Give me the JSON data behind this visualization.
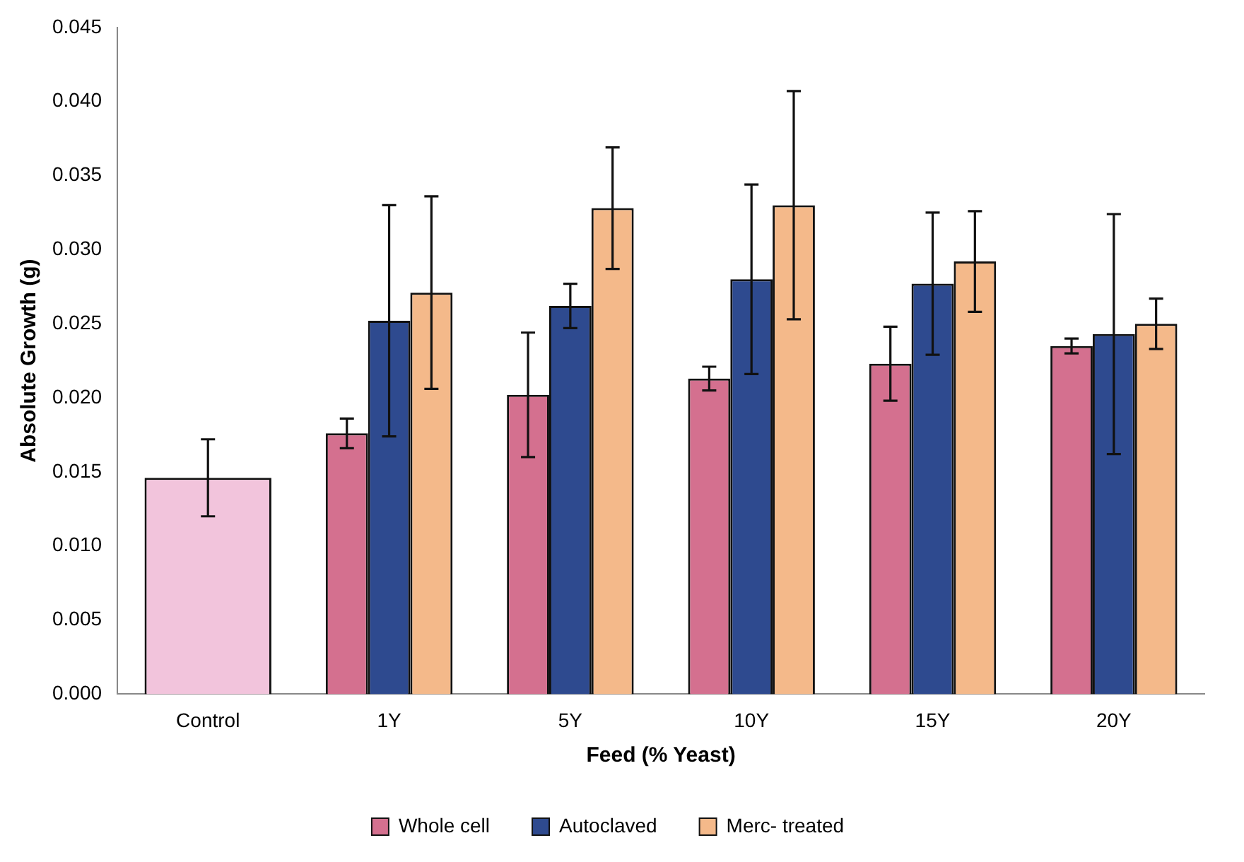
{
  "chart_data": {
    "type": "bar",
    "xlabel": "Feed (% Yeast)",
    "ylabel": "Absolute Growth (g)",
    "categories": [
      "Control",
      "1Y",
      "5Y",
      "10Y",
      "15Y",
      "20Y"
    ],
    "series": [
      {
        "name": "Whole cell",
        "color": "#d4708f",
        "colors": [
          "#f2c4dc",
          "#d4708f",
          "#d4708f",
          "#d4708f",
          "#d4708f",
          "#d4708f"
        ],
        "values": [
          0.0146,
          0.0176,
          0.0202,
          0.0213,
          0.0223,
          0.0235
        ],
        "errors": [
          0.0026,
          0.001,
          0.0042,
          0.0008,
          0.0025,
          0.0005
        ]
      },
      {
        "name": "Autoclaved",
        "color": "#2e4a8f",
        "values": [
          null,
          0.0252,
          0.0262,
          0.028,
          0.0277,
          0.0243
        ],
        "errors": [
          null,
          0.0078,
          0.0015,
          0.0064,
          0.0048,
          0.0081
        ]
      },
      {
        "name": "Merc- treated",
        "color": "#f4b98a",
        "values": [
          null,
          0.0271,
          0.0328,
          0.033,
          0.0292,
          0.025
        ],
        "errors": [
          null,
          0.0065,
          0.0041,
          0.0077,
          0.0034,
          0.0017
        ]
      }
    ],
    "ylim": [
      0,
      0.045
    ],
    "yticks": [
      {
        "value": 0,
        "label": "0.000"
      },
      {
        "value": 0.005,
        "label": "0.005"
      },
      {
        "value": 0.01,
        "label": "0.010"
      },
      {
        "value": 0.015,
        "label": "0.015"
      },
      {
        "value": 0.02,
        "label": "0.020"
      },
      {
        "value": 0.025,
        "label": "0.025"
      },
      {
        "value": 0.03,
        "label": "0.030"
      },
      {
        "value": 0.035,
        "label": "0.035"
      },
      {
        "value": 0.04,
        "label": "0.040"
      },
      {
        "value": 0.045,
        "label": "0.045"
      }
    ],
    "grid": false,
    "legend": "bottom"
  }
}
